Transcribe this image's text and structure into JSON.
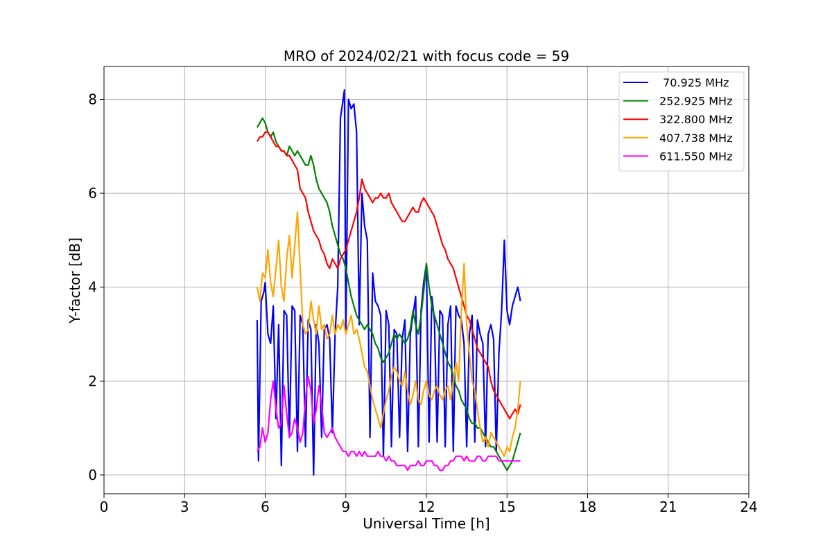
{
  "chart_data": {
    "type": "line",
    "title": "MRO of 2024/02/21 with focus code = 59",
    "xlabel": "Universal Time [h]",
    "ylabel": "Y-factor [dB]",
    "xlim": [
      0,
      24
    ],
    "ylim": [
      -0.4,
      8.7
    ],
    "xticks": [
      0,
      3,
      6,
      9,
      12,
      15,
      18,
      21,
      24
    ],
    "yticks": [
      0,
      2,
      4,
      6,
      8
    ],
    "grid": true,
    "legend_position": "top-right",
    "series": [
      {
        "name": " 70.925 MHz",
        "color": "#0000ff",
        "x": [
          5.7,
          5.75,
          5.85,
          5.95,
          6.0,
          6.1,
          6.2,
          6.3,
          6.4,
          6.5,
          6.6,
          6.7,
          6.8,
          6.9,
          7.0,
          7.1,
          7.2,
          7.3,
          7.4,
          7.5,
          7.6,
          7.7,
          7.8,
          7.9,
          8.0,
          8.1,
          8.2,
          8.3,
          8.4,
          8.5,
          8.6,
          8.7,
          8.8,
          8.9,
          8.95,
          9.0,
          9.1,
          9.2,
          9.3,
          9.4,
          9.5,
          9.6,
          9.7,
          9.8,
          9.9,
          10.0,
          10.1,
          10.2,
          10.3,
          10.4,
          10.5,
          10.6,
          10.7,
          10.8,
          10.9,
          11.0,
          11.1,
          11.2,
          11.3,
          11.4,
          11.5,
          11.6,
          11.7,
          11.8,
          11.9,
          12.0,
          12.1,
          12.2,
          12.3,
          12.4,
          12.5,
          12.6,
          12.7,
          12.8,
          12.9,
          13.0,
          13.1,
          13.2,
          13.3,
          13.4,
          13.5,
          13.6,
          13.7,
          13.8,
          13.9,
          14.0,
          14.1,
          14.2,
          14.3,
          14.4,
          14.5,
          14.6,
          14.7,
          14.8,
          14.9,
          15.0,
          15.1,
          15.2,
          15.3,
          15.4,
          15.5
        ],
        "values": [
          3.3,
          0.3,
          3.7,
          3.9,
          4.1,
          3.0,
          2.8,
          3.6,
          1.2,
          3.2,
          0.2,
          3.5,
          3.4,
          0.8,
          3.6,
          3.5,
          0.5,
          3.4,
          3.2,
          0.6,
          3.3,
          3.1,
          0.0,
          3.2,
          2.8,
          0.8,
          3.1,
          3.2,
          2.9,
          0.9,
          3.0,
          4.0,
          7.6,
          8.0,
          8.2,
          3.0,
          8.0,
          7.8,
          7.9,
          7.3,
          3.2,
          6.0,
          5.3,
          5.0,
          0.8,
          4.3,
          3.7,
          3.6,
          3.4,
          0.4,
          3.5,
          3.2,
          0.6,
          3.1,
          3.0,
          0.8,
          2.9,
          3.3,
          0.5,
          3.0,
          3.4,
          3.8,
          0.6,
          3.5,
          4.1,
          4.5,
          0.7,
          3.8,
          3.3,
          0.7,
          3.5,
          3.4,
          0.6,
          3.2,
          3.6,
          0.5,
          3.6,
          3.4,
          3.3,
          2.8,
          0.6,
          3.0,
          3.4,
          0.7,
          3.3,
          3.0,
          2.8,
          0.6,
          3.0,
          3.2,
          2.9,
          0.5,
          2.6,
          3.5,
          5.0,
          3.5,
          3.2,
          3.6,
          3.8,
          4.0,
          3.7
        ]
      },
      {
        "name": "252.925 MHz",
        "color": "#008000",
        "x": [
          5.7,
          5.8,
          5.9,
          6.0,
          6.1,
          6.2,
          6.3,
          6.4,
          6.5,
          6.6,
          6.7,
          6.8,
          6.9,
          7.0,
          7.1,
          7.2,
          7.3,
          7.4,
          7.5,
          7.6,
          7.7,
          7.8,
          7.9,
          8.0,
          8.1,
          8.2,
          8.3,
          8.4,
          8.5,
          8.6,
          8.7,
          8.8,
          8.9,
          9.0,
          9.1,
          9.2,
          9.3,
          9.4,
          9.5,
          9.6,
          9.7,
          9.8,
          9.9,
          10.0,
          10.1,
          10.2,
          10.3,
          10.4,
          10.5,
          10.6,
          10.7,
          10.8,
          10.9,
          11.0,
          11.1,
          11.2,
          11.3,
          11.4,
          11.5,
          11.6,
          11.7,
          11.8,
          11.9,
          12.0,
          12.1,
          12.2,
          12.3,
          12.4,
          12.5,
          12.6,
          12.7,
          12.8,
          12.9,
          13.0,
          13.1,
          13.2,
          13.3,
          13.4,
          13.5,
          13.6,
          13.7,
          13.8,
          13.9,
          14.0,
          14.1,
          14.2,
          14.3,
          14.4,
          14.5,
          14.6,
          14.7,
          14.8,
          14.9,
          15.0,
          15.1,
          15.2,
          15.3,
          15.4,
          15.5
        ],
        "values": [
          7.4,
          7.5,
          7.6,
          7.5,
          7.3,
          7.2,
          7.3,
          7.1,
          7.0,
          6.9,
          6.9,
          6.8,
          7.0,
          6.9,
          6.8,
          6.9,
          6.8,
          6.7,
          6.6,
          6.6,
          6.8,
          6.6,
          6.3,
          6.1,
          6.0,
          5.9,
          5.8,
          5.6,
          5.3,
          5.1,
          4.9,
          4.7,
          4.6,
          4.4,
          4.1,
          3.8,
          3.6,
          3.4,
          3.3,
          3.2,
          3.1,
          3.2,
          3.1,
          3.0,
          2.8,
          2.7,
          2.5,
          2.4,
          2.5,
          2.6,
          2.8,
          3.0,
          2.9,
          3.0,
          2.9,
          2.8,
          2.9,
          3.1,
          3.5,
          3.2,
          3.0,
          3.4,
          3.9,
          4.5,
          4.0,
          3.6,
          3.4,
          3.2,
          3.0,
          2.8,
          2.6,
          2.4,
          2.3,
          2.1,
          1.9,
          1.8,
          1.6,
          1.5,
          1.4,
          1.2,
          1.1,
          1.1,
          1.0,
          1.0,
          0.9,
          0.8,
          0.7,
          0.6,
          0.6,
          0.5,
          0.4,
          0.3,
          0.2,
          0.1,
          0.2,
          0.3,
          0.5,
          0.7,
          0.9
        ]
      },
      {
        "name": "322.800 MHz",
        "color": "#ff0000",
        "x": [
          5.7,
          5.8,
          5.9,
          6.0,
          6.1,
          6.2,
          6.3,
          6.4,
          6.5,
          6.6,
          6.7,
          6.8,
          6.9,
          7.0,
          7.1,
          7.2,
          7.3,
          7.4,
          7.5,
          7.6,
          7.7,
          7.8,
          7.9,
          8.0,
          8.1,
          8.2,
          8.3,
          8.4,
          8.5,
          8.6,
          8.7,
          8.8,
          8.9,
          9.0,
          9.1,
          9.2,
          9.3,
          9.4,
          9.5,
          9.6,
          9.7,
          9.8,
          9.9,
          10.0,
          10.1,
          10.2,
          10.3,
          10.4,
          10.5,
          10.6,
          10.7,
          10.8,
          10.9,
          11.0,
          11.1,
          11.2,
          11.3,
          11.4,
          11.5,
          11.6,
          11.7,
          11.8,
          11.9,
          12.0,
          12.1,
          12.2,
          12.3,
          12.4,
          12.5,
          12.6,
          12.7,
          12.8,
          12.9,
          13.0,
          13.1,
          13.2,
          13.3,
          13.4,
          13.5,
          13.6,
          13.7,
          13.8,
          13.9,
          14.0,
          14.1,
          14.2,
          14.3,
          14.4,
          14.5,
          14.6,
          14.7,
          14.8,
          14.9,
          15.0,
          15.1,
          15.2,
          15.3,
          15.4,
          15.5
        ],
        "values": [
          7.1,
          7.2,
          7.2,
          7.3,
          7.3,
          7.2,
          7.1,
          7.0,
          7.0,
          6.9,
          6.9,
          6.8,
          6.8,
          6.7,
          6.6,
          6.5,
          6.1,
          6.0,
          5.9,
          5.6,
          5.4,
          5.2,
          5.1,
          5.0,
          4.8,
          4.7,
          4.5,
          4.4,
          4.6,
          4.5,
          4.4,
          4.6,
          4.7,
          4.8,
          5.0,
          5.2,
          5.4,
          5.6,
          5.9,
          6.3,
          6.1,
          6.0,
          5.9,
          5.8,
          5.9,
          5.9,
          6.0,
          5.9,
          5.9,
          6.0,
          5.8,
          5.7,
          5.6,
          5.5,
          5.4,
          5.4,
          5.5,
          5.6,
          5.7,
          5.6,
          5.6,
          5.8,
          5.9,
          5.8,
          5.7,
          5.6,
          5.5,
          5.3,
          5.1,
          4.9,
          4.8,
          4.6,
          4.5,
          4.4,
          4.2,
          4.0,
          3.8,
          3.6,
          3.4,
          3.3,
          3.1,
          2.9,
          2.7,
          2.6,
          2.5,
          2.4,
          2.3,
          2.0,
          1.8,
          1.7,
          1.6,
          1.5,
          1.4,
          1.3,
          1.2,
          1.3,
          1.4,
          1.3,
          1.5
        ]
      },
      {
        "name": "407.738 MHz",
        "color": "#ffa500",
        "x": [
          5.7,
          5.8,
          5.9,
          6.0,
          6.1,
          6.2,
          6.3,
          6.4,
          6.5,
          6.6,
          6.7,
          6.8,
          6.9,
          7.0,
          7.1,
          7.2,
          7.3,
          7.4,
          7.5,
          7.6,
          7.7,
          7.8,
          7.9,
          8.0,
          8.1,
          8.2,
          8.3,
          8.4,
          8.5,
          8.6,
          8.7,
          8.8,
          8.9,
          9.0,
          9.1,
          9.2,
          9.3,
          9.4,
          9.5,
          9.6,
          9.7,
          9.8,
          9.9,
          10.0,
          10.1,
          10.2,
          10.3,
          10.4,
          10.5,
          10.6,
          10.7,
          10.8,
          10.9,
          11.0,
          11.1,
          11.2,
          11.3,
          11.4,
          11.5,
          11.6,
          11.7,
          11.8,
          11.9,
          12.0,
          12.1,
          12.2,
          12.3,
          12.4,
          12.5,
          12.6,
          12.7,
          12.8,
          12.9,
          13.0,
          13.1,
          13.2,
          13.3,
          13.4,
          13.5,
          13.6,
          13.7,
          13.8,
          13.9,
          14.0,
          14.1,
          14.2,
          14.3,
          14.4,
          14.5,
          14.6,
          14.7,
          14.8,
          14.9,
          15.0,
          15.1,
          15.2,
          15.3,
          15.4,
          15.5
        ],
        "values": [
          4.0,
          3.7,
          4.3,
          4.2,
          4.8,
          4.1,
          3.8,
          4.4,
          5.0,
          4.0,
          3.7,
          4.6,
          5.1,
          4.2,
          4.9,
          5.6,
          4.4,
          3.2,
          3.0,
          3.1,
          3.7,
          3.3,
          3.0,
          3.6,
          3.1,
          3.2,
          2.9,
          3.0,
          3.4,
          3.0,
          3.2,
          3.1,
          3.3,
          3.0,
          3.2,
          3.4,
          3.0,
          3.1,
          2.9,
          2.6,
          2.3,
          2.2,
          1.9,
          1.6,
          1.4,
          1.2,
          1.0,
          1.3,
          1.6,
          1.8,
          2.1,
          2.3,
          2.2,
          2.0,
          1.9,
          2.2,
          1.8,
          1.5,
          1.7,
          2.0,
          1.6,
          1.5,
          1.8,
          2.0,
          1.7,
          1.6,
          1.8,
          1.9,
          1.7,
          1.6,
          1.8,
          1.9,
          1.6,
          2.0,
          2.4,
          2.0,
          3.5,
          4.5,
          3.2,
          2.6,
          2.0,
          1.8,
          1.4,
          1.0,
          0.7,
          0.8,
          0.6,
          0.9,
          0.8,
          0.7,
          0.6,
          0.5,
          0.4,
          0.6,
          0.5,
          0.8,
          1.0,
          1.4,
          2.0
        ]
      },
      {
        "name": "611.550 MHz",
        "color": "#ff00ff",
        "x": [
          5.7,
          5.8,
          5.9,
          6.0,
          6.1,
          6.2,
          6.3,
          6.4,
          6.5,
          6.6,
          6.7,
          6.8,
          6.9,
          7.0,
          7.1,
          7.2,
          7.3,
          7.4,
          7.5,
          7.6,
          7.7,
          7.8,
          7.9,
          8.0,
          8.1,
          8.2,
          8.3,
          8.4,
          8.5,
          8.6,
          8.7,
          8.8,
          8.9,
          9.0,
          9.1,
          9.2,
          9.3,
          9.4,
          9.5,
          9.6,
          9.7,
          9.8,
          9.9,
          10.0,
          10.1,
          10.2,
          10.3,
          10.4,
          10.5,
          10.6,
          10.7,
          10.8,
          10.9,
          11.0,
          11.1,
          11.2,
          11.3,
          11.4,
          11.5,
          11.6,
          11.7,
          11.8,
          11.9,
          12.0,
          12.1,
          12.2,
          12.3,
          12.4,
          12.5,
          12.6,
          12.7,
          12.8,
          12.9,
          13.0,
          13.1,
          13.2,
          13.3,
          13.4,
          13.5,
          13.6,
          13.7,
          13.8,
          13.9,
          14.0,
          14.1,
          14.2,
          14.3,
          14.4,
          14.5,
          14.6,
          14.7,
          14.8,
          14.9,
          15.0,
          15.1,
          15.2,
          15.3,
          15.4,
          15.5
        ],
        "values": [
          0.5,
          0.6,
          1.0,
          0.7,
          0.9,
          1.6,
          2.0,
          1.4,
          1.0,
          1.1,
          1.9,
          1.3,
          0.8,
          0.9,
          1.2,
          1.0,
          0.7,
          0.9,
          1.6,
          2.1,
          1.8,
          1.1,
          1.4,
          1.9,
          1.5,
          0.9,
          0.8,
          0.9,
          1.0,
          0.8,
          0.7,
          0.6,
          0.5,
          0.5,
          0.4,
          0.5,
          0.5,
          0.4,
          0.5,
          0.4,
          0.5,
          0.4,
          0.4,
          0.4,
          0.4,
          0.5,
          0.4,
          0.4,
          0.3,
          0.4,
          0.3,
          0.3,
          0.2,
          0.2,
          0.2,
          0.2,
          0.1,
          0.2,
          0.2,
          0.2,
          0.3,
          0.2,
          0.2,
          0.3,
          0.3,
          0.3,
          0.2,
          0.2,
          0.1,
          0.1,
          0.2,
          0.2,
          0.3,
          0.3,
          0.4,
          0.4,
          0.4,
          0.3,
          0.4,
          0.3,
          0.3,
          0.3,
          0.4,
          0.4,
          0.3,
          0.3,
          0.4,
          0.4,
          0.4,
          0.4,
          0.3,
          0.3,
          0.3,
          0.3,
          0.3,
          0.3,
          0.3,
          0.3,
          0.3
        ]
      }
    ]
  }
}
